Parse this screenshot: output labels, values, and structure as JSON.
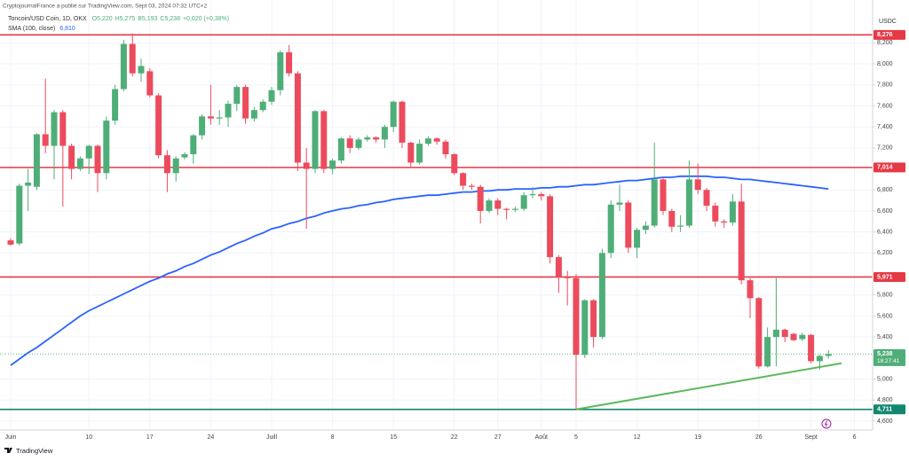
{
  "chart_data": {
    "type": "candlestick",
    "published": "CryptojournalFrance a publié sur TradingView.com, Sept 03, 2024 07:32 UTC+2",
    "title": "Toncoin/USD Coin, 1D, OKX",
    "legend_values": [
      "O5,220",
      "H5,275",
      "B5,193",
      "C5,238",
      "+0,020 (+0,38%)"
    ],
    "currency": "USDC",
    "brand": "TradingView",
    "up_color": "#4fae78",
    "down_color": "#ec4b5d",
    "grid": true,
    "ylim": [
      4515,
      8608
    ],
    "yticks": [
      {
        "value": 4600,
        "label": "4,600"
      },
      {
        "value": 4800,
        "label": "4,800"
      },
      {
        "value": 5000,
        "label": "5,000"
      },
      {
        "value": 5400,
        "label": "5,400"
      },
      {
        "value": 5600,
        "label": "5,600"
      },
      {
        "value": 5800,
        "label": "5,800"
      },
      {
        "value": 6200,
        "label": "6,200"
      },
      {
        "value": 6400,
        "label": "6,400"
      },
      {
        "value": 6600,
        "label": "6,600"
      },
      {
        "value": 6800,
        "label": "6,800"
      },
      {
        "value": 7200,
        "label": "7,200"
      },
      {
        "value": 7400,
        "label": "7,400"
      },
      {
        "value": 7600,
        "label": "7,600"
      },
      {
        "value": 7800,
        "label": "7,800"
      },
      {
        "value": 8000,
        "label": "8,000"
      },
      {
        "value": 8200,
        "label": "8,200"
      }
    ],
    "categories": [
      "Juin",
      null,
      null,
      null,
      null,
      null,
      null,
      null,
      null,
      "10",
      null,
      null,
      null,
      null,
      null,
      null,
      "17",
      null,
      null,
      null,
      null,
      null,
      null,
      "24",
      null,
      null,
      null,
      null,
      null,
      null,
      "Juill",
      null,
      null,
      null,
      null,
      null,
      null,
      "8",
      null,
      null,
      null,
      null,
      null,
      null,
      "15",
      null,
      null,
      null,
      null,
      null,
      null,
      "22",
      null,
      null,
      null,
      null,
      "27",
      null,
      null,
      null,
      null,
      "Août",
      null,
      null,
      null,
      "5",
      null,
      null,
      null,
      null,
      null,
      null,
      "12",
      null,
      null,
      null,
      null,
      null,
      null,
      "19",
      null,
      null,
      null,
      null,
      null,
      null,
      "26",
      null,
      null,
      null,
      null,
      null,
      "Sept",
      null,
      null,
      null,
      null,
      "6"
    ],
    "open": [
      6320,
      6290,
      6840,
      6830,
      7330,
      7220,
      7540,
      7220,
      7000,
      7100,
      7220,
      6960,
      7460,
      7760,
      8190,
      7910,
      7930,
      7700,
      7130,
      6960,
      7110,
      7140,
      7320,
      7500,
      7480,
      7490,
      7620,
      7780,
      7480,
      7560,
      7640,
      7750,
      8110,
      7910,
      7060,
      7000,
      7550,
      7000,
      7080,
      7290,
      7200,
      7280,
      7300,
      7280,
      7400,
      7640,
      7250,
      7060,
      7240,
      7290,
      7260,
      7140,
      6960,
      6840,
      6830,
      6600,
      6700,
      6620,
      6610,
      6620,
      6750,
      6760,
      6740,
      6160,
      5970,
      5960,
      5230,
      5750,
      5400,
      6200,
      6660,
      6680,
      6250,
      6420,
      6460,
      6900,
      6600,
      6450,
      6460,
      6900,
      6800,
      6650,
      6500,
      6490,
      6690,
      5940,
      5770,
      5120,
      5400,
      5470,
      5430,
      5380,
      5420,
      5170,
      5220,
      null,
      null,
      null
    ],
    "high": [
      6340,
      6860,
      7000,
      7340,
      7860,
      7560,
      7560,
      7240,
      7120,
      7230,
      7230,
      7500,
      7800,
      8230,
      8290,
      8050,
      7960,
      7720,
      7180,
      7120,
      7160,
      7330,
      7520,
      7800,
      7560,
      7650,
      7800,
      7800,
      7590,
      7660,
      7780,
      8130,
      8180,
      7930,
      7200,
      7560,
      7560,
      7100,
      7300,
      7320,
      7300,
      7320,
      7310,
      7420,
      7650,
      7650,
      7260,
      7280,
      7310,
      7300,
      7280,
      7150,
      6970,
      6860,
      6850,
      6720,
      6720,
      6630,
      6640,
      6780,
      6830,
      6780,
      6760,
      6180,
      6030,
      6000,
      5760,
      5760,
      6240,
      6700,
      6850,
      6700,
      6440,
      6500,
      7250,
      6920,
      6620,
      6560,
      7080,
      7050,
      6820,
      6680,
      6520,
      6760,
      6860,
      5960,
      5780,
      5490,
      5960,
      5480,
      5440,
      5440,
      5430,
      5230,
      5275,
      null,
      null,
      null
    ],
    "low": [
      6270,
      6270,
      6600,
      6800,
      7150,
      6900,
      6640,
      6900,
      6980,
      6950,
      6780,
      6900,
      7420,
      7740,
      7880,
      7830,
      7680,
      7100,
      6780,
      6880,
      7090,
      7050,
      7280,
      7420,
      7420,
      7400,
      7550,
      7430,
      7450,
      7540,
      7610,
      7700,
      7880,
      6980,
      6430,
      6960,
      6960,
      6950,
      7050,
      7150,
      7180,
      7260,
      7250,
      7200,
      7350,
      7200,
      7020,
      7040,
      7220,
      7230,
      7100,
      6940,
      6800,
      6800,
      6480,
      6580,
      6560,
      6520,
      6590,
      6600,
      6720,
      6700,
      6100,
      5820,
      5700,
      4711,
      5200,
      5300,
      5380,
      6150,
      6600,
      6200,
      6150,
      6380,
      6440,
      6560,
      6400,
      6400,
      6440,
      6760,
      6600,
      6450,
      6440,
      6460,
      5900,
      5580,
      5100,
      5110,
      5120,
      5350,
      5360,
      5360,
      5150,
      5090,
      5193,
      null,
      null,
      null
    ],
    "close": [
      6280,
      6840,
      6870,
      7330,
      7220,
      7540,
      7220,
      7000,
      7100,
      7220,
      6960,
      7460,
      7760,
      8190,
      7910,
      7980,
      7700,
      7130,
      6960,
      7100,
      7140,
      7320,
      7500,
      7480,
      7490,
      7620,
      7780,
      7480,
      7560,
      7640,
      7750,
      8110,
      7910,
      7060,
      7000,
      7550,
      7000,
      7080,
      7290,
      7200,
      7280,
      7300,
      7280,
      7400,
      7640,
      7250,
      7060,
      7240,
      7290,
      7260,
      7140,
      6960,
      6840,
      6830,
      6600,
      6700,
      6620,
      6610,
      6620,
      6750,
      6760,
      6740,
      6160,
      5970,
      5960,
      5230,
      5750,
      5400,
      6200,
      6660,
      6680,
      6250,
      6420,
      6460,
      6900,
      6600,
      6450,
      6460,
      6900,
      6800,
      6650,
      6500,
      6490,
      6690,
      5940,
      5770,
      5120,
      5400,
      5470,
      5400,
      5370,
      5420,
      5170,
      5220,
      5238,
      null,
      null,
      null
    ],
    "sma": {
      "name": "SMA (100, close)",
      "value_label": "6,810",
      "color": "#2962ff",
      "values": [
        5130,
        5190,
        5250,
        5300,
        5360,
        5420,
        5480,
        5540,
        5600,
        5650,
        5690,
        5730,
        5770,
        5810,
        5850,
        5890,
        5930,
        5960,
        6000,
        6030,
        6070,
        6100,
        6140,
        6180,
        6210,
        6250,
        6290,
        6320,
        6360,
        6390,
        6430,
        6450,
        6480,
        6500,
        6530,
        6550,
        6580,
        6600,
        6620,
        6630,
        6650,
        6660,
        6680,
        6690,
        6710,
        6720,
        6730,
        6740,
        6750,
        6750,
        6760,
        6770,
        6780,
        6780,
        6790,
        6790,
        6800,
        6800,
        6810,
        6810,
        6810,
        6820,
        6820,
        6830,
        6830,
        6840,
        6850,
        6850,
        6860,
        6870,
        6880,
        6890,
        6890,
        6900,
        6910,
        6920,
        6920,
        6930,
        6930,
        6930,
        6930,
        6920,
        6920,
        6910,
        6900,
        6900,
        6890,
        6880,
        6870,
        6860,
        6850,
        6840,
        6830,
        6820,
        6810,
        null,
        null,
        null
      ]
    },
    "levels": [
      {
        "value": 8276,
        "label": "8,276",
        "color": "#e53945"
      },
      {
        "value": 7014,
        "label": "7,014",
        "color": "#e53945"
      },
      {
        "value": 5971,
        "label": "5,971",
        "color": "#e53945"
      },
      {
        "value": 4711,
        "label": "4,711",
        "color": "#12876f"
      }
    ],
    "last_price": {
      "value": 5238,
      "label": "5,238",
      "countdown": "18:27:41",
      "color": "#4fae78"
    },
    "trend_line": {
      "color": "#5cb85c",
      "x": [
        65,
        95.5
      ],
      "values": [
        4711,
        5150
      ]
    }
  }
}
